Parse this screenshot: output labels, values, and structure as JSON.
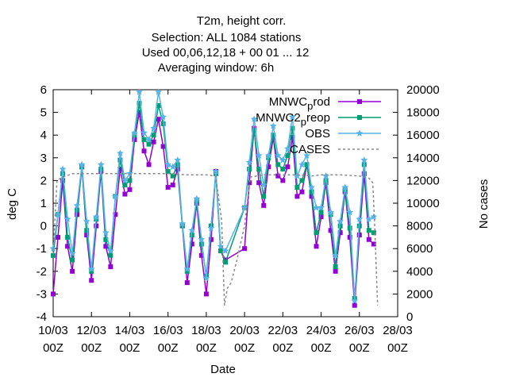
{
  "chart_data": {
    "type": "line",
    "title_lines": [
      "T2m, height corr.",
      "Selection: ALL    1084 stations",
      "Used  00,06,12,18 + 00 01 ... 12",
      "Averaging window:  6h"
    ],
    "xlabel": "Date",
    "ylabel": "deg C",
    "y2label": "No cases",
    "ylim": [
      -4,
      6
    ],
    "y2lim": [
      0,
      20000
    ],
    "yticks": [
      -4,
      -3,
      -2,
      -1,
      0,
      1,
      2,
      3,
      4,
      5,
      6
    ],
    "y2ticks": [
      0,
      2000,
      4000,
      6000,
      8000,
      10000,
      12000,
      14000,
      16000,
      18000,
      20000
    ],
    "xlim": [
      "2025-03-10 00Z",
      "2025-03-28 00Z"
    ],
    "xticks": [
      {
        "day": 10,
        "top": "10/03",
        "bottom": "00Z"
      },
      {
        "day": 12,
        "top": "12/03",
        "bottom": "00Z"
      },
      {
        "day": 14,
        "top": "14/03",
        "bottom": "00Z"
      },
      {
        "day": 16,
        "top": "16/03",
        "bottom": "00Z"
      },
      {
        "day": 18,
        "top": "18/03",
        "bottom": "00Z"
      },
      {
        "day": 20,
        "top": "20/03",
        "bottom": "00Z"
      },
      {
        "day": 22,
        "top": "22/03",
        "bottom": "00Z"
      },
      {
        "day": 24,
        "top": "24/03",
        "bottom": "00Z"
      },
      {
        "day": 26,
        "top": "26/03",
        "bottom": "00Z"
      },
      {
        "day": 28,
        "top": "28/03",
        "bottom": "00Z"
      }
    ],
    "legend_position": "top-right",
    "legend_entries": [
      {
        "label_main": "MNWC",
        "label_sub": "p",
        "label_tail": "rod"
      },
      {
        "label_main": "MNWC2",
        "label_sub": "p",
        "label_tail": "reop"
      },
      {
        "label_main": "OBS",
        "label_sub": "",
        "label_tail": ""
      },
      {
        "label_main": "CASES",
        "label_sub": "",
        "label_tail": ""
      }
    ],
    "series": [
      {
        "name": "MNWC_prod",
        "color": "#9400d3",
        "marker": "square",
        "values": [
          [
            10.0,
            -3.0
          ],
          [
            10.25,
            -0.5
          ],
          [
            10.5,
            2.0
          ],
          [
            10.75,
            -0.9
          ],
          [
            11.0,
            -2.0
          ],
          [
            11.25,
            0.5
          ],
          [
            11.5,
            2.6
          ],
          [
            11.75,
            -0.4
          ],
          [
            12.0,
            -2.4
          ],
          [
            12.25,
            0.0
          ],
          [
            12.5,
            2.4
          ],
          [
            12.75,
            -0.9
          ],
          [
            13.0,
            -1.8
          ],
          [
            13.25,
            0.5
          ],
          [
            13.5,
            2.5
          ],
          [
            13.75,
            1.4
          ],
          [
            14.0,
            1.6
          ],
          [
            14.25,
            3.8
          ],
          [
            14.5,
            5.0
          ],
          [
            14.75,
            3.3
          ],
          [
            15.0,
            2.7
          ],
          [
            15.25,
            3.7
          ],
          [
            15.5,
            4.7
          ],
          [
            15.75,
            3.5
          ],
          [
            16.0,
            1.7
          ],
          [
            16.25,
            1.8
          ],
          [
            16.5,
            2.5
          ],
          [
            16.75,
            0.0
          ],
          [
            17.0,
            -2.5
          ],
          [
            17.25,
            -0.8
          ],
          [
            17.5,
            1.0
          ],
          [
            17.75,
            -1.3
          ],
          [
            18.0,
            -3.0
          ],
          [
            18.25,
            -0.6
          ],
          [
            18.5,
            2.4
          ],
          [
            18.75,
            -1.1
          ],
          [
            19.0,
            -1.5
          ],
          [
            20.0,
            -1.0
          ],
          [
            20.25,
            1.9
          ],
          [
            20.5,
            4.3
          ],
          [
            20.75,
            1.9
          ],
          [
            21.0,
            0.9
          ],
          [
            21.25,
            2.6
          ],
          [
            21.5,
            3.9
          ],
          [
            21.75,
            2.2
          ],
          [
            22.0,
            2.0
          ],
          [
            22.25,
            2.6
          ],
          [
            22.5,
            3.9
          ],
          [
            22.75,
            1.3
          ],
          [
            23.0,
            1.5
          ],
          [
            23.25,
            2.7
          ],
          [
            23.5,
            1.3
          ],
          [
            23.75,
            -0.9
          ],
          [
            24.0,
            0.4
          ],
          [
            24.25,
            1.9
          ],
          [
            24.5,
            -0.2
          ],
          [
            24.75,
            -2.0
          ],
          [
            25.0,
            -0.3
          ],
          [
            25.25,
            1.5
          ],
          [
            25.5,
            -0.5
          ],
          [
            25.75,
            -3.5
          ],
          [
            26.0,
            -0.4
          ],
          [
            26.25,
            2.3
          ],
          [
            26.5,
            -0.6
          ],
          [
            26.75,
            -0.8
          ]
        ]
      },
      {
        "name": "MNWC2_preop",
        "color": "#009e73",
        "marker": "square",
        "values": [
          [
            10.0,
            -1.3
          ],
          [
            10.25,
            0.5
          ],
          [
            10.5,
            2.3
          ],
          [
            10.75,
            -0.5
          ],
          [
            11.0,
            -1.5
          ],
          [
            11.25,
            0.7
          ],
          [
            11.5,
            2.6
          ],
          [
            11.75,
            -0.2
          ],
          [
            12.0,
            -2.0
          ],
          [
            12.25,
            0.3
          ],
          [
            12.5,
            2.5
          ],
          [
            12.75,
            -0.6
          ],
          [
            13.0,
            -1.3
          ],
          [
            13.25,
            1.3
          ],
          [
            13.5,
            2.9
          ],
          [
            13.75,
            1.8
          ],
          [
            14.0,
            2.0
          ],
          [
            14.25,
            4.0
          ],
          [
            14.5,
            5.4
          ],
          [
            14.75,
            3.8
          ],
          [
            15.0,
            3.6
          ],
          [
            15.25,
            4.0
          ],
          [
            15.5,
            5.3
          ],
          [
            15.75,
            4.5
          ],
          [
            16.0,
            2.4
          ],
          [
            16.25,
            2.2
          ],
          [
            16.5,
            2.7
          ],
          [
            16.75,
            0.0
          ],
          [
            17.0,
            -2.0
          ],
          [
            17.25,
            -0.4
          ],
          [
            17.5,
            1.1
          ],
          [
            17.75,
            -0.8
          ],
          [
            18.0,
            -2.2
          ],
          [
            18.25,
            0.0
          ],
          [
            18.5,
            2.3
          ],
          [
            18.75,
            -1.1
          ],
          [
            19.0,
            -1.6
          ],
          [
            20.0,
            0.8
          ],
          [
            20.25,
            2.5
          ],
          [
            20.5,
            4.2
          ],
          [
            20.75,
            2.5
          ],
          [
            21.0,
            1.3
          ],
          [
            21.25,
            3.0
          ],
          [
            21.5,
            4.0
          ],
          [
            21.75,
            2.7
          ],
          [
            22.0,
            2.5
          ],
          [
            22.25,
            3.1
          ],
          [
            22.5,
            4.3
          ],
          [
            22.75,
            1.7
          ],
          [
            23.0,
            2.0
          ],
          [
            23.25,
            2.7
          ],
          [
            23.5,
            1.5
          ],
          [
            23.75,
            -0.3
          ],
          [
            24.0,
            0.6
          ],
          [
            24.25,
            2.0
          ],
          [
            24.5,
            0.5
          ],
          [
            24.75,
            -1.8
          ],
          [
            25.0,
            0.0
          ],
          [
            25.25,
            1.6
          ],
          [
            25.5,
            -0.1
          ],
          [
            25.75,
            -3.2
          ],
          [
            26.0,
            0.0
          ],
          [
            26.25,
            2.7
          ],
          [
            26.5,
            -0.2
          ],
          [
            26.75,
            -0.3
          ]
        ]
      },
      {
        "name": "OBS",
        "color": "#56b4e9",
        "marker": "star",
        "values": [
          [
            10.0,
            -1.0
          ],
          [
            10.25,
            0.5
          ],
          [
            10.5,
            2.5
          ],
          [
            10.75,
            0.3
          ],
          [
            11.0,
            -1.2
          ],
          [
            11.25,
            0.9
          ],
          [
            11.5,
            2.7
          ],
          [
            11.75,
            0.2
          ],
          [
            12.0,
            -1.9
          ],
          [
            12.25,
            0.4
          ],
          [
            12.5,
            2.7
          ],
          [
            12.75,
            -0.3
          ],
          [
            13.0,
            -1.1
          ],
          [
            13.25,
            1.3
          ],
          [
            13.5,
            3.2
          ],
          [
            13.75,
            2.0
          ],
          [
            14.0,
            2.3
          ],
          [
            14.25,
            4.1
          ],
          [
            14.5,
            5.9
          ],
          [
            14.75,
            4.1
          ],
          [
            15.0,
            3.8
          ],
          [
            15.25,
            4.3
          ],
          [
            15.5,
            5.9
          ],
          [
            15.75,
            4.8
          ],
          [
            16.0,
            2.7
          ],
          [
            16.25,
            2.6
          ],
          [
            16.5,
            2.9
          ],
          [
            16.75,
            0.1
          ],
          [
            17.0,
            -1.9
          ],
          [
            17.25,
            -0.2
          ],
          [
            17.5,
            1.2
          ],
          [
            17.75,
            -0.6
          ],
          [
            18.0,
            -2.3
          ],
          [
            18.25,
            -0.1
          ],
          [
            18.5,
            2.4
          ],
          [
            18.75,
            -0.9
          ],
          [
            19.0,
            -1.1
          ],
          [
            20.0,
            0.8
          ],
          [
            20.25,
            2.8
          ],
          [
            20.5,
            4.7
          ],
          [
            20.75,
            3.1
          ],
          [
            21.0,
            1.8
          ],
          [
            21.25,
            3.1
          ],
          [
            21.5,
            4.4
          ],
          [
            21.75,
            3.1
          ],
          [
            22.0,
            2.9
          ],
          [
            22.25,
            3.4
          ],
          [
            22.5,
            4.8
          ],
          [
            22.75,
            2.2
          ],
          [
            23.0,
            2.7
          ],
          [
            23.25,
            3.1
          ],
          [
            23.5,
            1.7
          ],
          [
            23.75,
            0.8
          ],
          [
            24.0,
            0.8
          ],
          [
            24.25,
            2.2
          ],
          [
            24.5,
            0.6
          ],
          [
            24.75,
            -1.3
          ],
          [
            25.0,
            0.2
          ],
          [
            25.25,
            1.7
          ],
          [
            25.5,
            0.6
          ],
          [
            25.75,
            -3.3
          ],
          [
            26.0,
            0.3
          ],
          [
            26.25,
            2.9
          ],
          [
            26.5,
            0.3
          ],
          [
            26.75,
            0.4
          ]
        ]
      },
      {
        "name": "CASES",
        "color": "#888888",
        "axis": "y2",
        "dashed": true,
        "values": [
          [
            10.0,
            5500
          ],
          [
            10.2,
            12000
          ],
          [
            10.5,
            12300
          ],
          [
            11.0,
            12600
          ],
          [
            12.0,
            12600
          ],
          [
            13.0,
            12600
          ],
          [
            14.0,
            12600
          ],
          [
            15.0,
            12600
          ],
          [
            16.0,
            12600
          ],
          [
            17.0,
            12500
          ],
          [
            18.0,
            12500
          ],
          [
            18.5,
            12400
          ],
          [
            18.6,
            11000
          ],
          [
            18.8,
            8500
          ],
          [
            18.95,
            1000
          ],
          [
            19.1,
            2500
          ],
          [
            19.3,
            3000
          ],
          [
            19.6,
            5000
          ],
          [
            20.0,
            8000
          ],
          [
            20.3,
            12300
          ],
          [
            21.0,
            12500
          ],
          [
            22.0,
            12500
          ],
          [
            23.0,
            12500
          ],
          [
            23.5,
            12400
          ],
          [
            24.0,
            12500
          ],
          [
            25.0,
            12500
          ],
          [
            26.0,
            12400
          ],
          [
            26.5,
            12200
          ],
          [
            26.7,
            11800
          ],
          [
            26.8,
            8000
          ],
          [
            26.95,
            1000
          ]
        ]
      }
    ]
  }
}
